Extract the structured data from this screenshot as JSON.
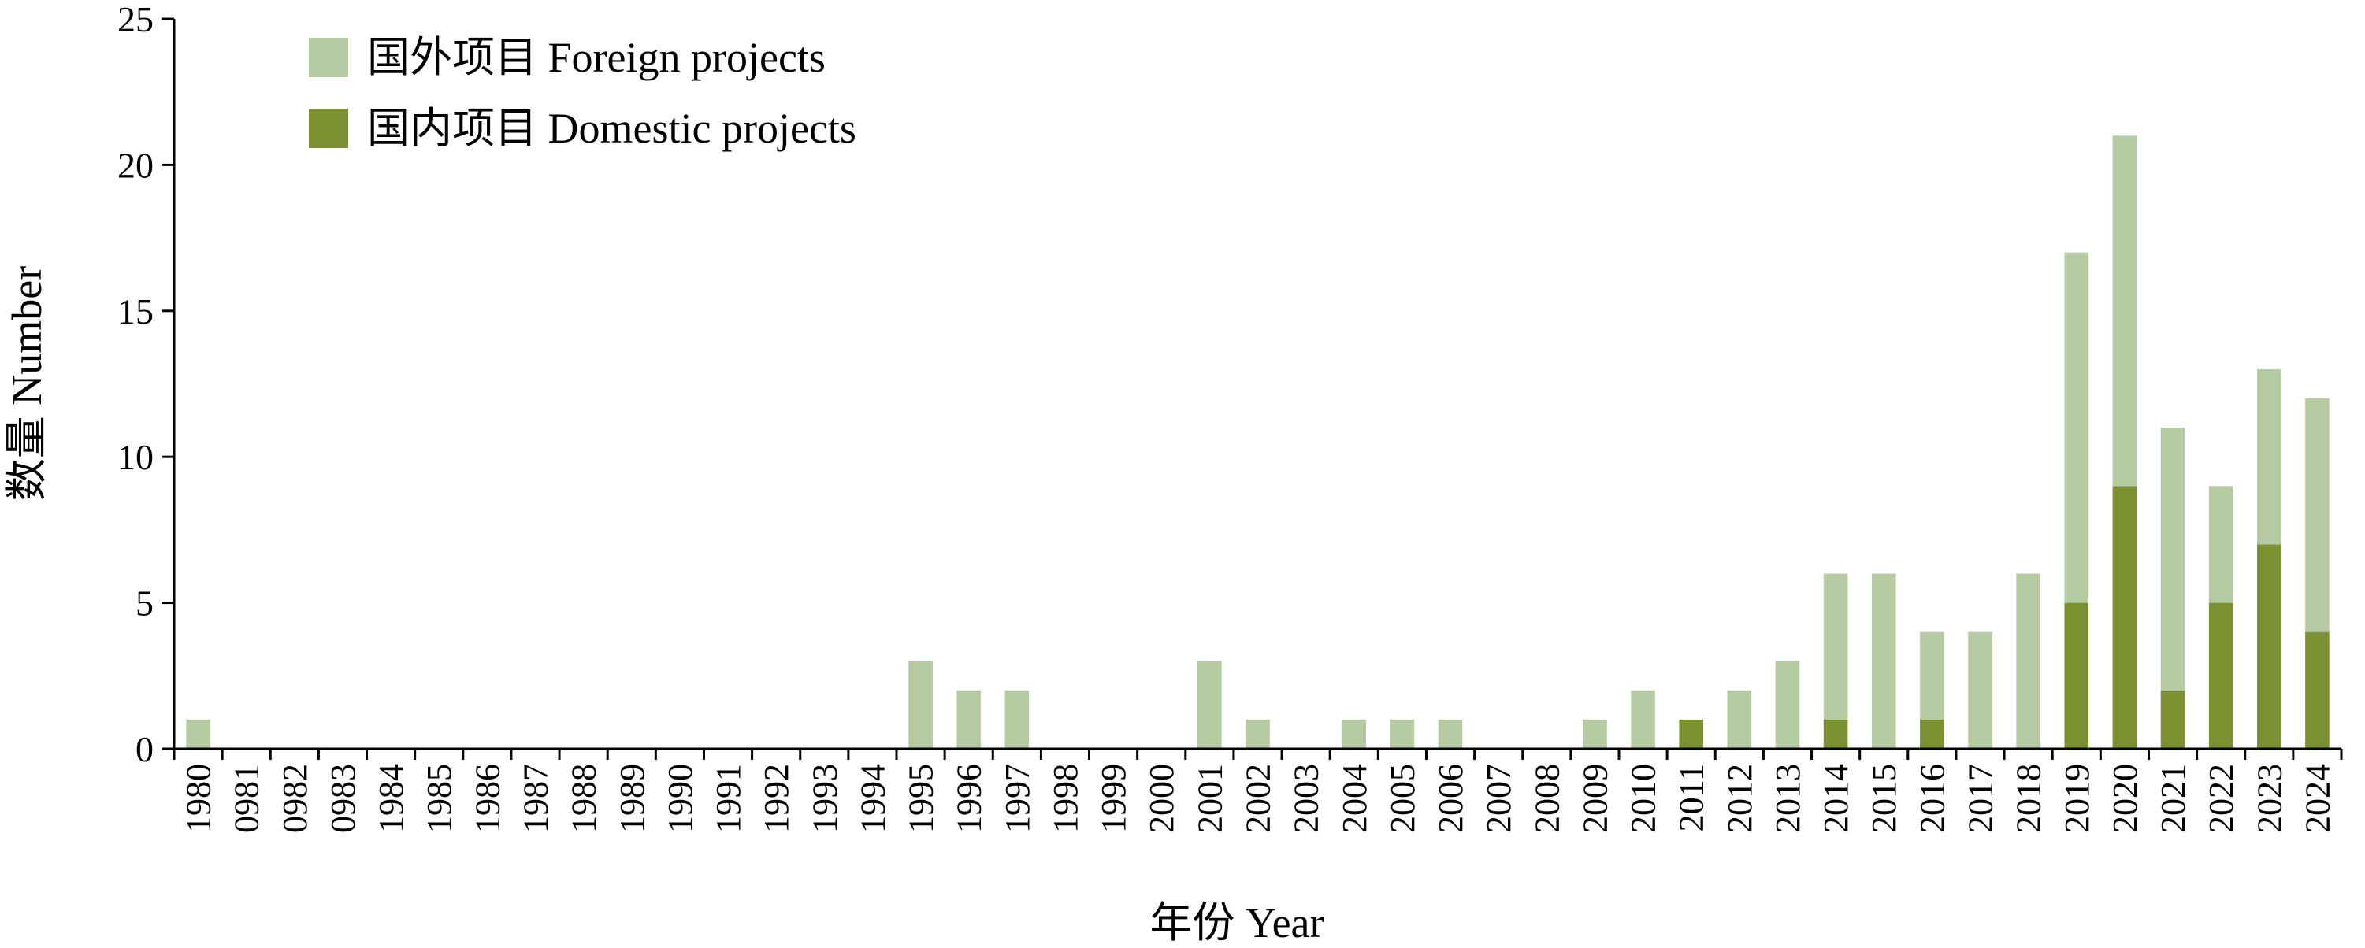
{
  "chart_data": {
    "type": "bar",
    "stacked": true,
    "xlabel": "年份 Year",
    "ylabel": "数量 Number",
    "ylim": [
      0,
      25
    ],
    "yticks": [
      0,
      5,
      10,
      15,
      20,
      25
    ],
    "grid": false,
    "legend_position": "top-left",
    "categories": [
      "1980",
      "0981",
      "0982",
      "0983",
      "1984",
      "1985",
      "1986",
      "1987",
      "1988",
      "1989",
      "1990",
      "1991",
      "1992",
      "1993",
      "1994",
      "1995",
      "1996",
      "1997",
      "1998",
      "1999",
      "2000",
      "2001",
      "2002",
      "2003",
      "2004",
      "2005",
      "2006",
      "2007",
      "2008",
      "2009",
      "2010",
      "2011",
      "2012",
      "2013",
      "2014",
      "2015",
      "2016",
      "2017",
      "2018",
      "2019",
      "2020",
      "2021",
      "2022",
      "2023",
      "2024"
    ],
    "series": [
      {
        "name": "国内项目 Domestic projects",
        "color": "#7b9030",
        "values": [
          0,
          0,
          0,
          0,
          0,
          0,
          0,
          0,
          0,
          0,
          0,
          0,
          0,
          0,
          0,
          0,
          0,
          0,
          0,
          0,
          0,
          0,
          0,
          0,
          0,
          0,
          0,
          0,
          0,
          0,
          0,
          1,
          0,
          0,
          1,
          0,
          1,
          0,
          0,
          5,
          9,
          2,
          5,
          7,
          4
        ]
      },
      {
        "name": "国外项目 Foreign projects",
        "color": "#b5cba1",
        "values": [
          1,
          0,
          0,
          0,
          0,
          0,
          0,
          0,
          0,
          0,
          0,
          0,
          0,
          0,
          0,
          3,
          2,
          2,
          0,
          0,
          0,
          3,
          1,
          0,
          1,
          1,
          1,
          0,
          0,
          1,
          2,
          0,
          2,
          3,
          5,
          6,
          3,
          4,
          6,
          12,
          12,
          9,
          4,
          6,
          8
        ]
      }
    ]
  }
}
